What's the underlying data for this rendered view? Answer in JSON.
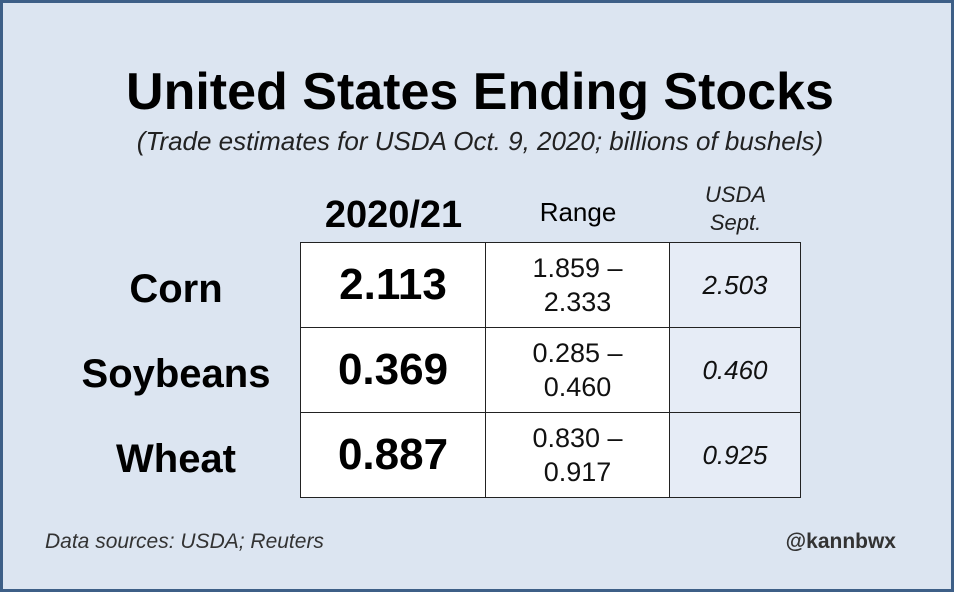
{
  "title": "United States Ending Stocks",
  "subtitle": "(Trade estimates for USDA Oct. 9, 2020; billions of bushels)",
  "chart_data": {
    "type": "table",
    "title": "United States Ending Stocks",
    "subtitle": "(Trade estimates for USDA Oct. 9, 2020; billions of bushels)",
    "columns": {
      "estimate": "2020/21",
      "range": "Range",
      "usda_line1": "USDA",
      "usda_line2": "Sept."
    },
    "rows": [
      {
        "crop": "Corn",
        "estimate": "2.113",
        "range_low": "1.859 –",
        "range_high": "2.333",
        "usda": "2.503"
      },
      {
        "crop": "Soybeans",
        "estimate": "0.369",
        "range_low": "0.285 –",
        "range_high": "0.460",
        "usda": "0.460"
      },
      {
        "crop": "Wheat",
        "estimate": "0.887",
        "range_low": "0.830 –",
        "range_high": "0.917",
        "usda": "0.925"
      }
    ]
  },
  "footer": {
    "source": "Data sources: USDA; Reuters",
    "handle": "@kannbwx"
  },
  "colors": {
    "background": "#dce5f1",
    "border": "#3d5f87",
    "usda_cell": "#e6ecf6"
  }
}
